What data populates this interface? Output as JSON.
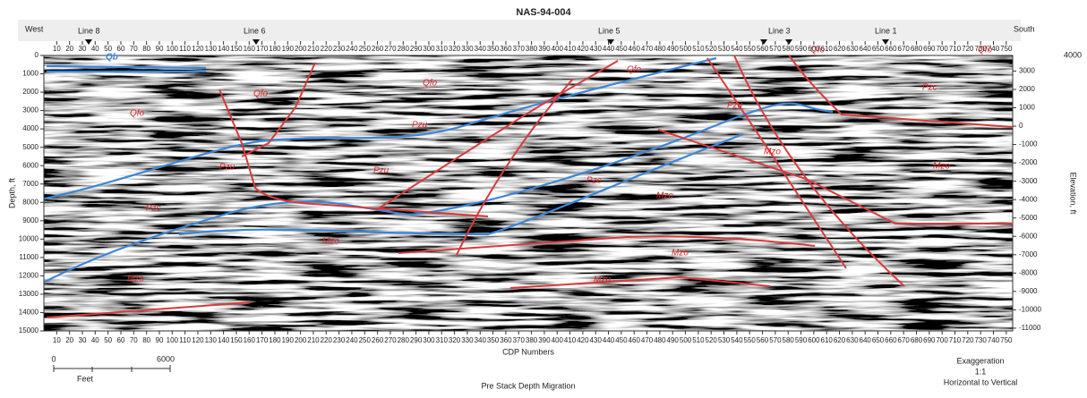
{
  "title": "NAS-94-004",
  "subtitle": "Pre Stack Depth Migration",
  "direction_left": "West",
  "direction_right": "South",
  "line_labels": [
    "Line 8",
    "Line 6",
    "Line 5",
    "Line 3",
    "Line 1"
  ],
  "x_axis": {
    "label": "CDP Numbers",
    "lim": [
      0,
      755
    ],
    "ticks": [
      10,
      20,
      30,
      40,
      50,
      60,
      70,
      80,
      90,
      100,
      110,
      120,
      130,
      140,
      150,
      160,
      170,
      180,
      190,
      200,
      210,
      220,
      230,
      240,
      250,
      260,
      270,
      280,
      290,
      300,
      310,
      320,
      330,
      340,
      350,
      360,
      370,
      380,
      390,
      400,
      410,
      420,
      430,
      440,
      450,
      460,
      470,
      480,
      490,
      500,
      510,
      520,
      530,
      540,
      550,
      560,
      570,
      580,
      590,
      600,
      610,
      620,
      630,
      640,
      650,
      660,
      670,
      680,
      690,
      700,
      710,
      720,
      730,
      740,
      750
    ]
  },
  "y_axis": {
    "label": "Depth, ft",
    "lim": [
      0,
      15000
    ],
    "ticks": [
      0,
      1000,
      2000,
      3000,
      4000,
      5000,
      6000,
      7000,
      8000,
      9000,
      10000,
      11000,
      12000,
      13000,
      14000,
      15000
    ]
  },
  "y2_axis": {
    "label": "Elevation, ft",
    "lim": [
      3850,
      -11150
    ],
    "ticks": [
      3000,
      2000,
      1000,
      0,
      -1000,
      -2000,
      -3000,
      -4000,
      -5000,
      -6000,
      -7000,
      -8000,
      -9000,
      -10000,
      -11000
    ]
  },
  "top_right_label": "4000",
  "units": [
    "Qb",
    "Qfo",
    "Qfo",
    "Qfo",
    "Qfo",
    "Qfo",
    "Qfo",
    "Pzu",
    "Pzu",
    "Pzu",
    "Pzu",
    "Pzc",
    "Pzc",
    "Pzc",
    "Mzo",
    "Mzo",
    "Mzo",
    "Mzo",
    "Mzo",
    "Mzo",
    "Mzu"
  ],
  "scale_bar": {
    "start": "0",
    "end": "6000",
    "unit": "Feet"
  },
  "exaggeration": {
    "title": "Exaggeration",
    "ratio": "1:1",
    "note": "Horizontal to Vertical"
  }
}
